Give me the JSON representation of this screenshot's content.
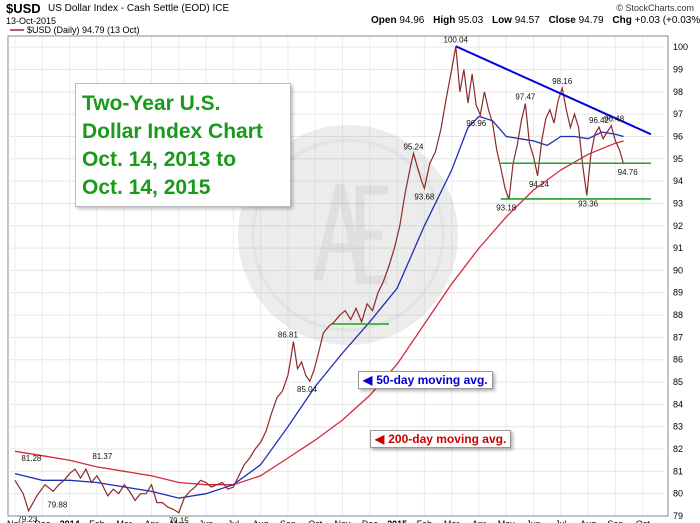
{
  "header": {
    "symbol": "$USD",
    "description": "US Dollar Index - Cash Settle (EOD) ICE",
    "date": "13-Oct-2015",
    "copyright": "© StockCharts.com",
    "open_label": "Open",
    "open": "94.96",
    "high_label": "High",
    "high": "95.03",
    "low_label": "Low",
    "low": "94.57",
    "close_label": "Close",
    "close": "94.79",
    "chg_label": "Chg",
    "chg": "+0.03 (+0.03%)"
  },
  "legend_line": "$USD (Daily) 94.79 (13 Oct)",
  "title_box": {
    "line1": "Two-Year U.S.",
    "line2": "Dollar Index Chart",
    "line3": "Oct. 14, 2013 to",
    "line4": "Oct. 14, 2015",
    "color": "#1a9a1a"
  },
  "callouts": {
    "ma50": {
      "label": "50-day moving avg.",
      "color": "#0000cc"
    },
    "ma200": {
      "label": "200-day moving avg.",
      "color": "#cc0000"
    }
  },
  "colors": {
    "price": "#8b2a2a",
    "ma50": "#1f2fb5",
    "ma200": "#d42a3a",
    "trend_up": "#0000dd",
    "support": "#22a022"
  },
  "chart_data": {
    "type": "line",
    "ylim": [
      79,
      100.5
    ],
    "y_ticks": [
      79,
      80,
      81,
      82,
      83,
      84,
      85,
      86,
      87,
      88,
      89,
      90,
      91,
      92,
      93,
      94,
      95,
      96,
      97,
      98,
      99,
      100
    ],
    "x_labels": [
      "Nov",
      "Dec",
      "2014",
      "Feb",
      "Mar",
      "Apr",
      "May",
      "Jun",
      "Jul",
      "Aug",
      "Sep",
      "Oct",
      "Nov",
      "Dec",
      "2015",
      "Feb",
      "Mar",
      "Apr",
      "May",
      "Jun",
      "Jul",
      "Aug",
      "Sep",
      "Oct"
    ],
    "x_label_bold": [
      "2014",
      "2015"
    ],
    "series": [
      {
        "key": "price",
        "points": [
          [
            0,
            80.6
          ],
          [
            0.3,
            80.0
          ],
          [
            0.5,
            79.23
          ],
          [
            0.8,
            79.9
          ],
          [
            1.1,
            80.4
          ],
          [
            1.4,
            80.1
          ],
          [
            1.6,
            80.4
          ],
          [
            1.8,
            80.6
          ],
          [
            2.0,
            80.9
          ],
          [
            2.2,
            81.1
          ],
          [
            2.4,
            80.7
          ],
          [
            2.6,
            81.1
          ],
          [
            2.8,
            80.5
          ],
          [
            3.0,
            80.8
          ],
          [
            3.2,
            80.4
          ],
          [
            3.4,
            79.9
          ],
          [
            3.6,
            80.2
          ],
          [
            3.8,
            80.0
          ],
          [
            4.0,
            80.4
          ],
          [
            4.2,
            80.1
          ],
          [
            4.4,
            79.7
          ],
          [
            4.6,
            80.0
          ],
          [
            4.8,
            80.0
          ],
          [
            5.0,
            80.4
          ],
          [
            5.2,
            79.6
          ],
          [
            5.4,
            79.6
          ],
          [
            5.6,
            79.4
          ],
          [
            5.8,
            79.3
          ],
          [
            6.0,
            79.15
          ],
          [
            6.2,
            79.8
          ],
          [
            6.4,
            80.1
          ],
          [
            6.6,
            80.3
          ],
          [
            6.8,
            80.6
          ],
          [
            7.0,
            80.5
          ],
          [
            7.2,
            80.3
          ],
          [
            7.4,
            80.4
          ],
          [
            7.6,
            80.5
          ],
          [
            7.8,
            80.2
          ],
          [
            8.0,
            80.3
          ],
          [
            8.2,
            80.8
          ],
          [
            8.4,
            81.3
          ],
          [
            8.6,
            81.6
          ],
          [
            8.8,
            82.0
          ],
          [
            9.0,
            82.3
          ],
          [
            9.2,
            82.8
          ],
          [
            9.4,
            83.6
          ],
          [
            9.6,
            84.3
          ],
          [
            9.8,
            84.6
          ],
          [
            10.0,
            85.3
          ],
          [
            10.1,
            86.0
          ],
          [
            10.2,
            86.81
          ],
          [
            10.35,
            85.6
          ],
          [
            10.5,
            85.9
          ],
          [
            10.65,
            85.3
          ],
          [
            10.8,
            85.04
          ],
          [
            10.95,
            85.5
          ],
          [
            11.1,
            86.2
          ],
          [
            11.3,
            87.2
          ],
          [
            11.5,
            87.5
          ],
          [
            11.7,
            87.7
          ],
          [
            11.9,
            88.0
          ],
          [
            12.1,
            88.2
          ],
          [
            12.3,
            87.8
          ],
          [
            12.5,
            88.3
          ],
          [
            12.7,
            87.7
          ],
          [
            12.9,
            88.5
          ],
          [
            13.1,
            88.2
          ],
          [
            13.3,
            89.0
          ],
          [
            13.5,
            89.5
          ],
          [
            13.7,
            90.2
          ],
          [
            13.9,
            91.0
          ],
          [
            14.1,
            92.0
          ],
          [
            14.3,
            93.5
          ],
          [
            14.5,
            94.7
          ],
          [
            14.6,
            95.24
          ],
          [
            14.75,
            94.6
          ],
          [
            14.9,
            94.0
          ],
          [
            15.0,
            93.68
          ],
          [
            15.2,
            94.8
          ],
          [
            15.4,
            95.3
          ],
          [
            15.6,
            96.3
          ],
          [
            15.8,
            97.7
          ],
          [
            16.0,
            99.0
          ],
          [
            16.15,
            100.04
          ],
          [
            16.3,
            98.0
          ],
          [
            16.45,
            99.0
          ],
          [
            16.6,
            97.5
          ],
          [
            16.75,
            98.8
          ],
          [
            16.9,
            97.4
          ],
          [
            17.05,
            96.96
          ],
          [
            17.2,
            98.0
          ],
          [
            17.35,
            97.2
          ],
          [
            17.5,
            96.6
          ],
          [
            17.65,
            95.4
          ],
          [
            17.8,
            94.6
          ],
          [
            17.95,
            93.7
          ],
          [
            18.1,
            93.18
          ],
          [
            18.25,
            94.8
          ],
          [
            18.4,
            95.6
          ],
          [
            18.55,
            96.7
          ],
          [
            18.7,
            97.47
          ],
          [
            18.85,
            95.7
          ],
          [
            19.0,
            95.1
          ],
          [
            19.15,
            94.24
          ],
          [
            19.3,
            95.8
          ],
          [
            19.45,
            96.8
          ],
          [
            19.6,
            97.2
          ],
          [
            19.75,
            96.6
          ],
          [
            19.9,
            97.6
          ],
          [
            20.05,
            98.16
          ],
          [
            20.2,
            97.2
          ],
          [
            20.35,
            96.4
          ],
          [
            20.5,
            97.0
          ],
          [
            20.65,
            96.4
          ],
          [
            20.8,
            94.7
          ],
          [
            20.95,
            93.36
          ],
          [
            21.1,
            95.2
          ],
          [
            21.25,
            96.1
          ],
          [
            21.4,
            96.42
          ],
          [
            21.55,
            95.9
          ],
          [
            21.7,
            96.2
          ],
          [
            21.85,
            96.48
          ],
          [
            22.0,
            95.8
          ],
          [
            22.15,
            95.4
          ],
          [
            22.3,
            94.76
          ]
        ]
      },
      {
        "key": "ma50",
        "points": [
          [
            0,
            80.9
          ],
          [
            1.0,
            80.6
          ],
          [
            2.0,
            80.6
          ],
          [
            3.0,
            80.5
          ],
          [
            4.0,
            80.3
          ],
          [
            5.0,
            80.1
          ],
          [
            6.0,
            79.8
          ],
          [
            7.0,
            80.0
          ],
          [
            8.0,
            80.4
          ],
          [
            9.0,
            81.3
          ],
          [
            10.0,
            83.0
          ],
          [
            11.0,
            84.8
          ],
          [
            12.0,
            86.3
          ],
          [
            13.0,
            87.7
          ],
          [
            14.0,
            89.2
          ],
          [
            15.0,
            92.0
          ],
          [
            16.0,
            94.5
          ],
          [
            16.6,
            96.4
          ],
          [
            17.0,
            96.9
          ],
          [
            17.5,
            96.7
          ],
          [
            18.0,
            96.0
          ],
          [
            18.5,
            95.9
          ],
          [
            19.0,
            95.8
          ],
          [
            19.5,
            95.6
          ],
          [
            20.0,
            96.0
          ],
          [
            20.5,
            96.0
          ],
          [
            21.0,
            95.9
          ],
          [
            21.5,
            96.2
          ],
          [
            22.0,
            96.1
          ],
          [
            22.3,
            96.0
          ]
        ]
      },
      {
        "key": "ma200",
        "points": [
          [
            0,
            81.9
          ],
          [
            1.0,
            81.7
          ],
          [
            2.0,
            81.5
          ],
          [
            3.0,
            81.2
          ],
          [
            4.0,
            81.0
          ],
          [
            5.0,
            80.8
          ],
          [
            6.0,
            80.5
          ],
          [
            7.0,
            80.4
          ],
          [
            8.0,
            80.4
          ],
          [
            9.0,
            80.8
          ],
          [
            10.0,
            81.6
          ],
          [
            11.0,
            82.4
          ],
          [
            12.0,
            83.3
          ],
          [
            13.0,
            84.4
          ],
          [
            14.0,
            85.8
          ],
          [
            15.0,
            87.6
          ],
          [
            16.0,
            89.4
          ],
          [
            17.0,
            91.0
          ],
          [
            18.0,
            92.4
          ],
          [
            19.0,
            93.6
          ],
          [
            20.0,
            94.5
          ],
          [
            21.0,
            95.2
          ],
          [
            22.0,
            95.7
          ],
          [
            22.3,
            95.8
          ]
        ]
      }
    ],
    "annotations": [
      {
        "text": "79.23",
        "x": 0.45,
        "y": 79.23,
        "pos": "below"
      },
      {
        "text": "81.28",
        "x": 0.6,
        "y": 81.28,
        "pos": "above"
      },
      {
        "text": "79.88",
        "x": 1.55,
        "y": 79.88,
        "pos": "below"
      },
      {
        "text": "81.37",
        "x": 3.2,
        "y": 81.37,
        "pos": "above"
      },
      {
        "text": "79.15",
        "x": 6.0,
        "y": 79.15,
        "pos": "below"
      },
      {
        "text": "86.81",
        "x": 10.0,
        "y": 86.81,
        "pos": "above"
      },
      {
        "text": "85.04",
        "x": 10.7,
        "y": 85.04,
        "pos": "below"
      },
      {
        "text": "95.24",
        "x": 14.6,
        "y": 95.24,
        "pos": "above"
      },
      {
        "text": "93.68",
        "x": 15.0,
        "y": 93.68,
        "pos": "below"
      },
      {
        "text": "100.04",
        "x": 16.15,
        "y": 100.04,
        "pos": "above"
      },
      {
        "text": "96.96",
        "x": 16.9,
        "y": 96.96,
        "pos": "below"
      },
      {
        "text": "97.47",
        "x": 18.7,
        "y": 97.47,
        "pos": "above"
      },
      {
        "text": "93.18",
        "x": 18.0,
        "y": 93.18,
        "pos": "below"
      },
      {
        "text": "94.24",
        "x": 19.2,
        "y": 94.24,
        "pos": "below"
      },
      {
        "text": "98.16",
        "x": 20.05,
        "y": 98.16,
        "pos": "above"
      },
      {
        "text": "93.36",
        "x": 21.0,
        "y": 93.36,
        "pos": "below"
      },
      {
        "text": "96.42",
        "x": 21.4,
        "y": 96.42,
        "pos": "above"
      },
      {
        "text": "96.48",
        "x": 21.95,
        "y": 96.48,
        "pos": "above"
      },
      {
        "text": "94.76",
        "x": 22.45,
        "y": 94.76,
        "pos": "below"
      }
    ],
    "trendlines": [
      {
        "key": "trend_up",
        "from": [
          16.15,
          100.04
        ],
        "to": [
          23.3,
          96.1
        ]
      },
      {
        "key": "support",
        "from": [
          11.6,
          87.6
        ],
        "to": [
          13.7,
          87.6
        ]
      },
      {
        "key": "support",
        "from": [
          17.8,
          94.8
        ],
        "to": [
          23.3,
          94.8
        ]
      },
      {
        "key": "support",
        "from": [
          17.8,
          93.2
        ],
        "to": [
          23.3,
          93.2
        ]
      }
    ]
  }
}
